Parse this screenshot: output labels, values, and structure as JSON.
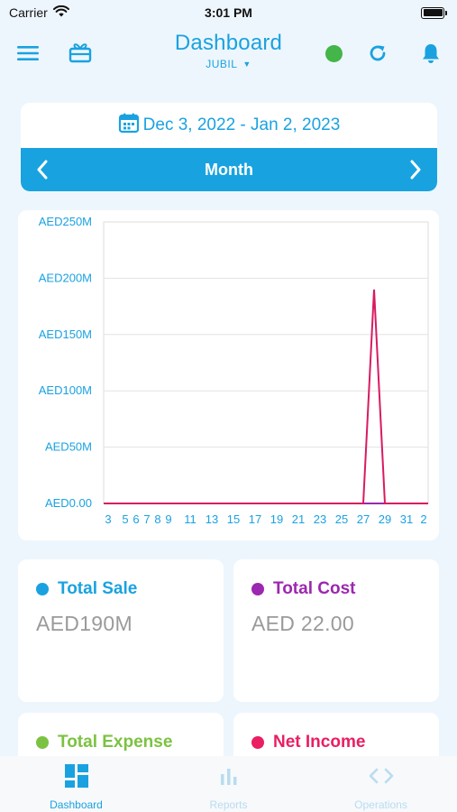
{
  "status_bar": {
    "carrier": "Carrier",
    "time": "3:01 PM"
  },
  "header": {
    "title": "Dashboard",
    "subtitle": "JUBIL",
    "online_color": "#43b549",
    "accent_color": "#1aa2e0"
  },
  "date_range": {
    "label": "Dec 3, 2022 - Jan 2, 2023",
    "period": "Month"
  },
  "chart_data": {
    "type": "line",
    "y_ticks": [
      "AED250M",
      "AED200M",
      "AED150M",
      "AED100M",
      "AED50M",
      "AED0.00"
    ],
    "ylim": [
      0,
      250000000
    ],
    "x_ticks": [
      "3",
      "5",
      "6",
      "7",
      "8",
      "9",
      "11",
      "13",
      "15",
      "17",
      "19",
      "21",
      "23",
      "25",
      "27",
      "29",
      "31",
      "2"
    ],
    "series": [
      {
        "color": "#d81b60",
        "x": [
          "Dec 3",
          "Dec 4",
          "Dec 5",
          "Dec 6",
          "Dec 7",
          "Dec 8",
          "Dec 9",
          "Dec 10",
          "Dec 11",
          "Dec 12",
          "Dec 13",
          "Dec 14",
          "Dec 15",
          "Dec 16",
          "Dec 17",
          "Dec 18",
          "Dec 19",
          "Dec 20",
          "Dec 21",
          "Dec 22",
          "Dec 23",
          "Dec 24",
          "Dec 25",
          "Dec 26",
          "Dec 27",
          "Dec 28",
          "Dec 29",
          "Dec 30",
          "Dec 31",
          "Jan 1",
          "Jan 2"
        ],
        "values": [
          0,
          0,
          0,
          0,
          0,
          0,
          0,
          0,
          0,
          0,
          0,
          0,
          0,
          0,
          0,
          0,
          0,
          0,
          0,
          0,
          0,
          0,
          0,
          0,
          0,
          190000000,
          0,
          0,
          0,
          0,
          0
        ]
      },
      {
        "color": "#9c27b0",
        "x": [
          "Dec 3",
          "Dec 4",
          "Dec 5",
          "Dec 6",
          "Dec 7",
          "Dec 8",
          "Dec 9",
          "Dec 10",
          "Dec 11",
          "Dec 12",
          "Dec 13",
          "Dec 14",
          "Dec 15",
          "Dec 16",
          "Dec 17",
          "Dec 18",
          "Dec 19",
          "Dec 20",
          "Dec 21",
          "Dec 22",
          "Dec 23",
          "Dec 24",
          "Dec 25",
          "Dec 26",
          "Dec 27",
          "Dec 28",
          "Dec 29",
          "Dec 30",
          "Dec 31",
          "Jan 1",
          "Jan 2"
        ],
        "values": [
          0,
          0,
          0,
          0,
          0,
          0,
          0,
          0,
          0,
          0,
          0,
          0,
          0,
          0,
          0,
          0,
          0,
          0,
          0,
          0,
          0,
          0,
          0,
          0,
          0,
          0,
          0,
          0,
          0,
          0,
          0
        ]
      }
    ],
    "grid": true
  },
  "metrics": [
    {
      "label": "Total Sale",
      "value": "AED190M",
      "color": "#1aa2e0"
    },
    {
      "label": "Total Cost",
      "value": "AED 22.00",
      "color": "#9c27b0"
    },
    {
      "label": "Total Expense",
      "value": "",
      "color": "#7cc242"
    },
    {
      "label": "Net Income",
      "value": "",
      "color": "#e91e63"
    }
  ],
  "bottom_nav": [
    {
      "label": "Dashboard",
      "icon": "dashboard-icon",
      "active": true
    },
    {
      "label": "Reports",
      "icon": "bar-chart-icon",
      "active": false
    },
    {
      "label": "Operations",
      "icon": "code-icon",
      "active": false
    }
  ],
  "nav_colors": {
    "active": "#1aa2e0",
    "inactive": "#b9dcef"
  }
}
